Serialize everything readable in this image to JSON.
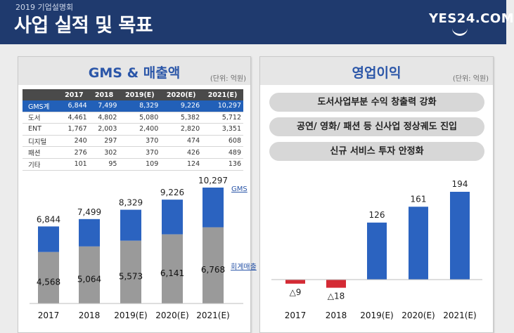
{
  "header": {
    "subtitle": "2019 기업설명회",
    "title": "사업 실적 및 목표",
    "logo": "YES24.COM"
  },
  "left_panel": {
    "title": "GMS & 매출액",
    "unit": "(단위: 억원)",
    "table": {
      "columns": [
        "",
        "2017",
        "2018",
        "2019(E)",
        "2020(E)",
        "2021(E)"
      ],
      "rows": [
        {
          "label": "GMS계",
          "values": [
            "6,844",
            "7,499",
            "8,329",
            "9,226",
            "10,297"
          ],
          "highlight": true
        },
        {
          "label": "도서",
          "values": [
            "4,461",
            "4,802",
            "5,080",
            "5,382",
            "5,712"
          ]
        },
        {
          "label": "ENT",
          "values": [
            "1,767",
            "2,003",
            "2,400",
            "2,820",
            "3,351"
          ]
        },
        {
          "label": "디지털",
          "values": [
            "240",
            "297",
            "370",
            "474",
            "608"
          ]
        },
        {
          "label": "패션",
          "values": [
            "276",
            "302",
            "370",
            "426",
            "489"
          ]
        },
        {
          "label": "기타",
          "values": [
            "101",
            "95",
            "109",
            "124",
            "136"
          ]
        }
      ]
    },
    "series_labels": {
      "gms": "GMS",
      "revenue": "회계매출"
    }
  },
  "right_panel": {
    "title": "영업이익",
    "unit": "(단위: 억원)",
    "bullets": [
      "도서사업부분 수익 창출력 강화",
      "공연/ 영화/ 패션 등 신사업 정상궤도 진입",
      "신규 서비스 투자 안정화"
    ]
  },
  "chart_data": [
    {
      "type": "bar",
      "categories": [
        "2017",
        "2018",
        "2019(E)",
        "2020(E)",
        "2021(E)"
      ],
      "series": [
        {
          "name": "GMS",
          "values": [
            6844,
            7499,
            8329,
            9226,
            10297
          ],
          "labels": [
            "6,844",
            "7,499",
            "8,329",
            "9,226",
            "10,297"
          ]
        },
        {
          "name": "회계매출",
          "values": [
            4568,
            5064,
            5573,
            6141,
            6768
          ],
          "labels": [
            "4,568",
            "5,064",
            "5,573",
            "6,141",
            "6,768"
          ]
        }
      ],
      "colors": {
        "gms": "#2b63c0",
        "revenue": "#9a9a9a"
      }
    },
    {
      "type": "bar",
      "categories": [
        "2017",
        "2018",
        "2019(E)",
        "2020(E)",
        "2021(E)"
      ],
      "series": [
        {
          "name": "",
          "values": [
            -9,
            -18,
            126,
            161,
            194
          ],
          "labels": [
            "△9",
            "△18",
            "126",
            "161",
            "194"
          ]
        }
      ],
      "colors": {
        "positive": "#2b63c0",
        "negative": "#d42a34"
      }
    }
  ]
}
